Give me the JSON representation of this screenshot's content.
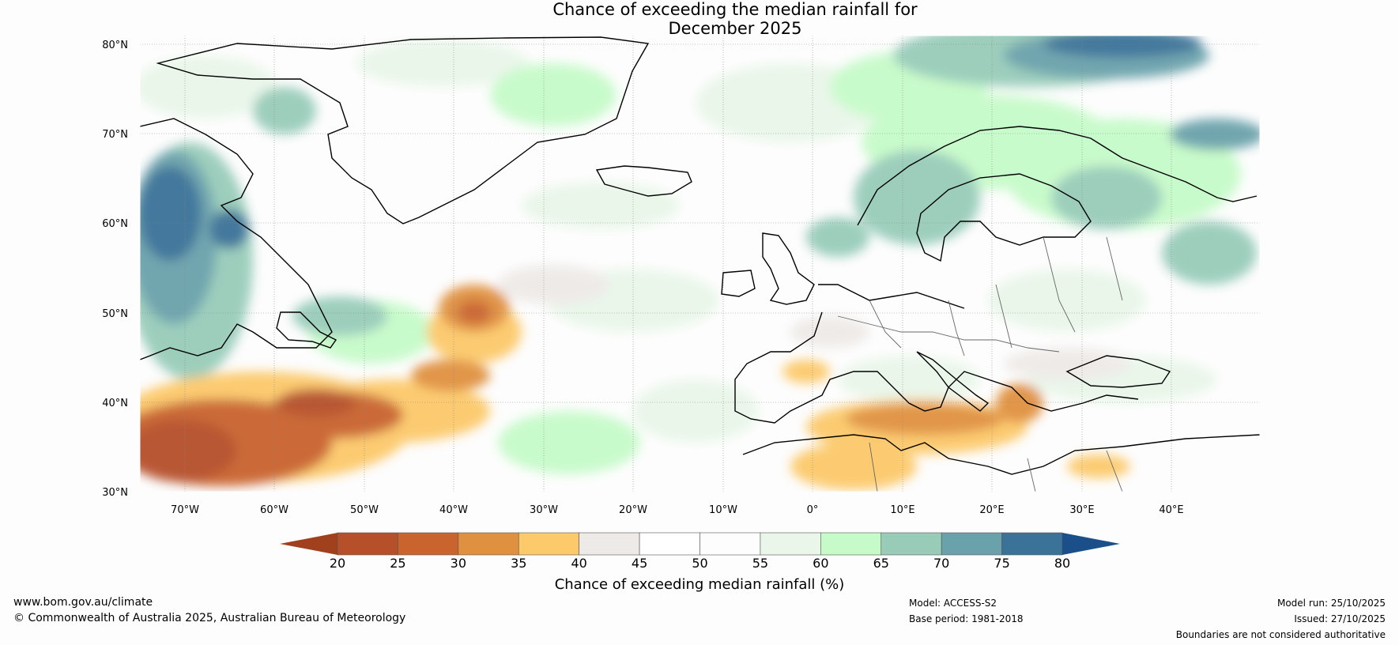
{
  "title": {
    "line1": "Chance of exceeding the median rainfall for",
    "line2": "December 2025"
  },
  "map": {
    "lat_labels": [
      "80°N",
      "70°N",
      "60°N",
      "50°N",
      "40°N",
      "30°N"
    ],
    "lon_labels": [
      "70°W",
      "60°W",
      "50°W",
      "40°W",
      "30°W",
      "20°W",
      "10°W",
      "0°",
      "10°E",
      "20°E",
      "30°E",
      "40°E"
    ],
    "lat_range": [
      30,
      81
    ],
    "lon_range": [
      -75,
      50
    ],
    "regions": [
      {
        "name": "North Atlantic subtropics 30-42N 75-40W",
        "category": "20-30"
      },
      {
        "name": "Central North Atlantic near 50N 40W",
        "category": "25-40"
      },
      {
        "name": "Mediterranean and North Africa",
        "category": "30-40"
      },
      {
        "name": "Labrador and Baffin",
        "category": "70-80"
      },
      {
        "name": "Barents Sea",
        "category": "70-80"
      },
      {
        "name": "Norway and Scandinavia",
        "category": "60-70"
      },
      {
        "name": "Greenland and central Atlantic",
        "category": "45-55"
      }
    ]
  },
  "colorbar": {
    "title": "Chance of exceeding median rainfall (%)",
    "ticks": [
      "20",
      "25",
      "30",
      "35",
      "40",
      "45",
      "50",
      "55",
      "60",
      "65",
      "70",
      "75",
      "80"
    ],
    "colors": [
      "#a0401c",
      "#b5502a",
      "#c9642f",
      "#e0913f",
      "#fcc96b",
      "#eeeae7",
      "#ffffff",
      "#fdfdfd",
      "#e9f6e9",
      "#c6fbc9",
      "#98ccb9",
      "#6aa2ab",
      "#3a7298",
      "#1a4f8a"
    ]
  },
  "footer": {
    "website": "www.bom.gov.au/climate",
    "copyright": "© Commonwealth of Australia 2025, Australian Bureau of Meteorology",
    "model": "Model: ACCESS-S2",
    "base_period": "Base period: 1981-2018",
    "model_run": "Model run: 25/10/2025",
    "issued": "Issued: 27/10/2025",
    "disclaimer": "Boundaries are not considered authoritative"
  }
}
